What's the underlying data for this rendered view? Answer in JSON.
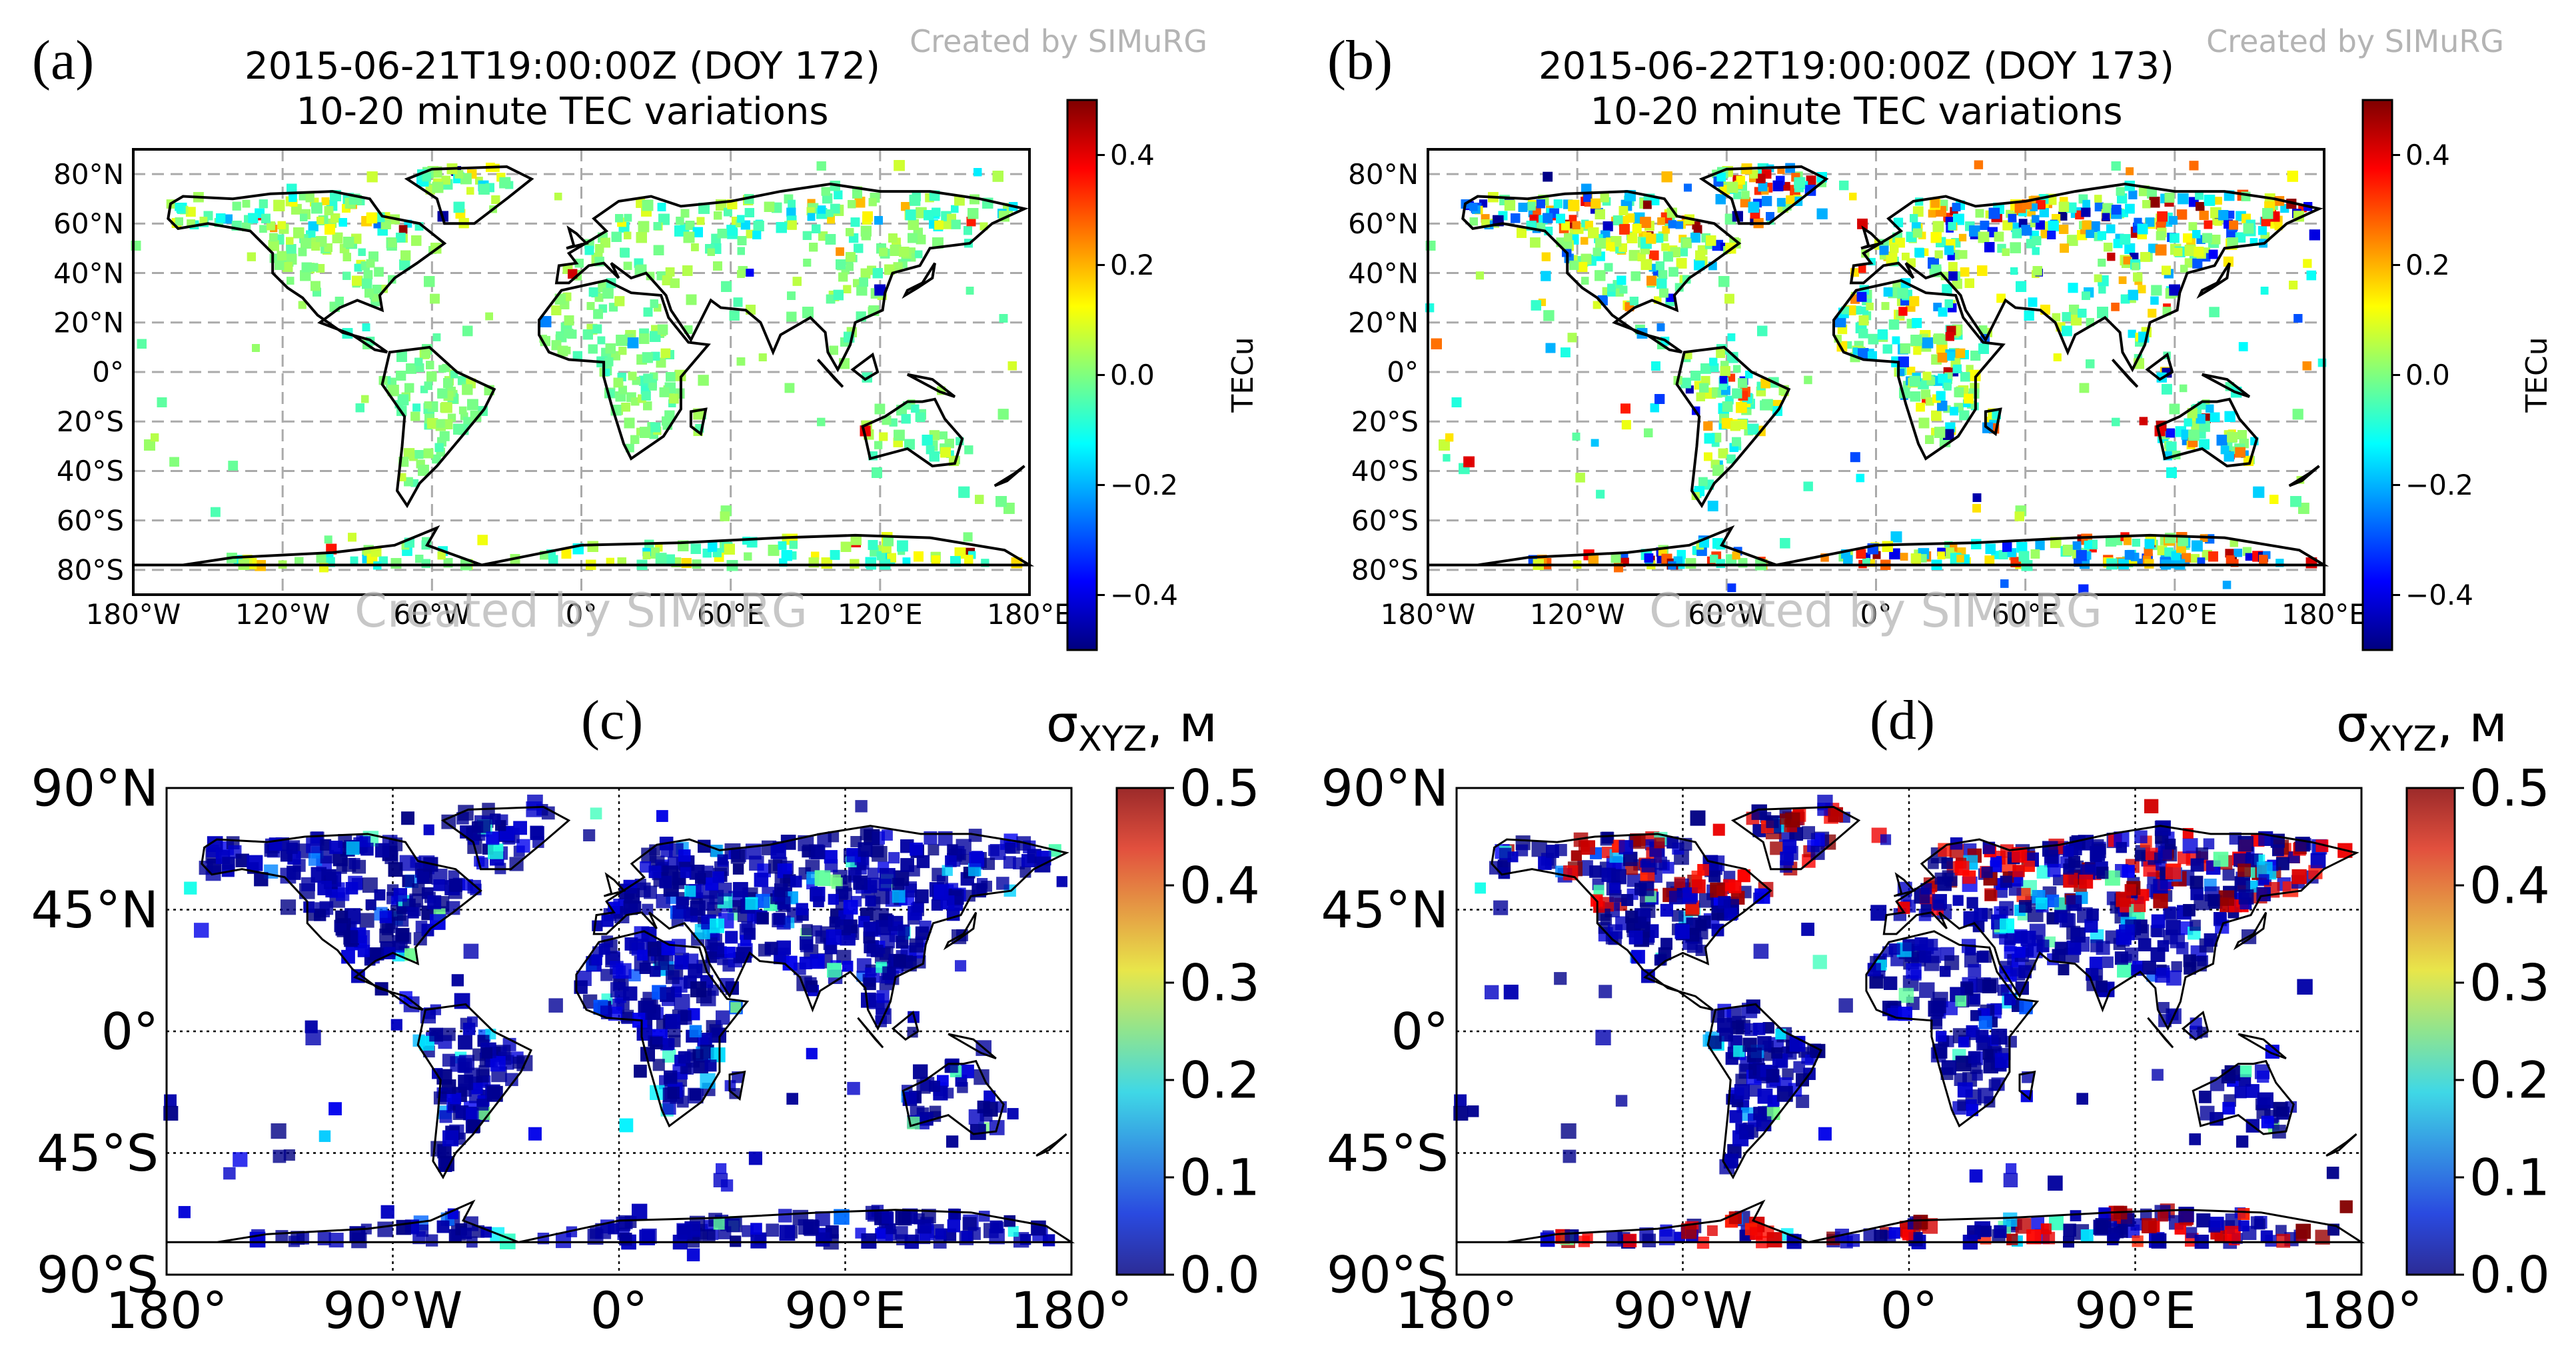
{
  "chart_data": [
    {
      "panel": "(a)",
      "type": "scatter",
      "title": "2015-06-21T19:00:00Z (DOY 172)",
      "subtitle": "10-20 minute TEC variations",
      "watermark": "Created by SIMuRG",
      "colorbar_label": "TECu",
      "colorbar_ticks": [
        "0.4",
        "0.2",
        "0.0",
        "−0.2",
        "−0.4"
      ],
      "colorbar_range": [
        -0.5,
        0.5
      ],
      "colormap": "jet",
      "xlim": [
        -180,
        180
      ],
      "ylim": [
        -90,
        90
      ],
      "x_ticks": [
        "180°W",
        "120°W",
        "60°W",
        "0°",
        "60°E",
        "120°E",
        "180°E"
      ],
      "y_ticks": [
        "80°N",
        "60°N",
        "40°N",
        "20°N",
        "0°",
        "20°S",
        "40°S",
        "60°S",
        "80°S"
      ],
      "grid": "dashed gray",
      "level": "quiet"
    },
    {
      "panel": "(b)",
      "type": "scatter",
      "title": "2015-06-22T19:00:00Z (DOY 173)",
      "subtitle": "10-20 minute TEC variations",
      "watermark": "Created by SIMuRG",
      "colorbar_label": "TECu",
      "colorbar_ticks": [
        "0.4",
        "0.2",
        "0.0",
        "−0.2",
        "−0.4"
      ],
      "colorbar_range": [
        -0.5,
        0.5
      ],
      "colormap": "jet",
      "xlim": [
        -180,
        180
      ],
      "ylim": [
        -90,
        90
      ],
      "x_ticks": [
        "180°W",
        "120°W",
        "60°W",
        "0°",
        "60°E",
        "120°E",
        "180°E"
      ],
      "y_ticks": [
        "80°N",
        "60°N",
        "40°N",
        "20°N",
        "0°",
        "20°S",
        "40°S",
        "60°S",
        "80°S"
      ],
      "grid": "dashed gray",
      "level": "disturbed"
    },
    {
      "panel": "(c)",
      "type": "scatter",
      "colorbar_label": "σ",
      "colorbar_label_sub": "XYZ",
      "colorbar_label_unit": ", м",
      "colorbar_ticks": [
        "0.5",
        "0.4",
        "0.3",
        "0.2",
        "0.1",
        "0.0"
      ],
      "colorbar_range": [
        0,
        0.5
      ],
      "colormap": "jet",
      "xlim": [
        -180,
        180
      ],
      "ylim": [
        -90,
        90
      ],
      "x_ticks": [
        "180°",
        "90°W",
        "0°",
        "90°E",
        "180°"
      ],
      "y_ticks": [
        "90°N",
        "45°N",
        "0°",
        "45°S",
        "90°S"
      ],
      "grid": "dotted black",
      "level": "quiet"
    },
    {
      "panel": "(d)",
      "type": "scatter",
      "colorbar_label": "σ",
      "colorbar_label_sub": "XYZ",
      "colorbar_label_unit": ", м",
      "colorbar_ticks": [
        "0.5",
        "0.4",
        "0.3",
        "0.2",
        "0.1",
        "0.0"
      ],
      "colorbar_range": [
        0,
        0.5
      ],
      "colormap": "jet",
      "xlim": [
        -180,
        180
      ],
      "ylim": [
        -90,
        90
      ],
      "x_ticks": [
        "180°",
        "90°W",
        "0°",
        "90°E",
        "180°"
      ],
      "y_ticks": [
        "90°N",
        "45°N",
        "0°",
        "45°S",
        "90°S"
      ],
      "grid": "dotted black",
      "level": "disturbed"
    }
  ]
}
